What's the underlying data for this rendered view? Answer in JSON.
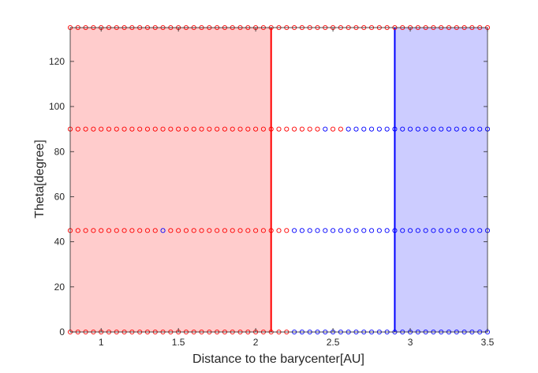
{
  "chart_data": {
    "type": "scatter",
    "title": "",
    "xlabel": "Distance to the barycenter[AU]",
    "ylabel": "Theta[degree]",
    "xlim": [
      0.8,
      3.5
    ],
    "ylim": [
      0,
      135
    ],
    "xticks": [
      1,
      1.5,
      2,
      2.5,
      3,
      3.5
    ],
    "xtick_labels": [
      "1",
      "1.5",
      "2",
      "2.5",
      "3",
      "3.5"
    ],
    "yticks": [
      0,
      20,
      40,
      60,
      80,
      100,
      120
    ],
    "ytick_labels": [
      "0",
      "20",
      "40",
      "60",
      "80",
      "100",
      "120"
    ],
    "grid": false,
    "legend": "none",
    "marker": "open-circle",
    "x_start": 0.8,
    "x_step": 0.05,
    "x_count": 55,
    "theta_rows": [
      {
        "theta": 0,
        "colors": "rrrrrrrrrrrrrrrrrrrrrrrrrrrrrbbbbbbbbbbbbbbbbbbbbbbbbbb"
      },
      {
        "theta": 45,
        "colors": "rrrrrrrrrrrrbrrrrrrrrrrrrrrrrbbbbbbbbbbbbbbbbbbbbbbbbbb"
      },
      {
        "theta": 90,
        "colors": "rrrrrrrrrrrrrrrrrrrrrrrrrrrrrrrrrbrrbbbbbbbbbbbbbbbbbbb"
      },
      {
        "theta": 135,
        "colors": "rrrrrrrrrrrrrrrrrrrrrrrrrrrrrrrrrrrrrrrrrrrrrrrrrrrrrrr"
      }
    ],
    "regions": [
      {
        "name": "",
        "x_from": 0.8,
        "x_to": 2.1,
        "color": "#ffcccc"
      },
      {
        "name": "",
        "x_from": 2.9,
        "x_to": 3.5,
        "color": "#ccccff"
      }
    ],
    "vertical_lines": [
      {
        "x": 2.1,
        "color": "#ff0000"
      },
      {
        "x": 2.9,
        "color": "#0000ff"
      }
    ],
    "colors": {
      "r": "#ff0000",
      "b": "#0000ff"
    }
  }
}
